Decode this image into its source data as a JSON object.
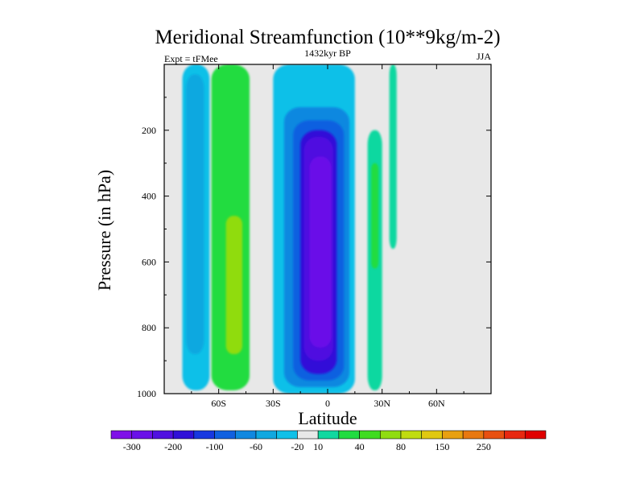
{
  "chart_data": {
    "type": "heatmap",
    "title": "Meridional Streamfunction (10**9kg/m-2)",
    "left_label": "Expt = tFMee",
    "center_label": "1432kyr BP",
    "right_label": "JJA",
    "xlabel": "Latitude",
    "ylabel": "Pressure (in hPa)",
    "xlim": [
      -90,
      90
    ],
    "ylim": [
      1000,
      0
    ],
    "x_ticks": [
      {
        "value": -60,
        "label": "60S"
      },
      {
        "value": -30,
        "label": "30S"
      },
      {
        "value": 0,
        "label": "0"
      },
      {
        "value": 30,
        "label": "30N"
      },
      {
        "value": 60,
        "label": "60N"
      }
    ],
    "y_ticks": [
      {
        "value": 200,
        "label": "200"
      },
      {
        "value": 400,
        "label": "400"
      },
      {
        "value": 600,
        "label": "600"
      },
      {
        "value": 800,
        "label": "800"
      },
      {
        "value": 1000,
        "label": "1000"
      }
    ],
    "colorbar": {
      "colors": [
        "#7f10e8",
        "#6a10e8",
        "#5010e0",
        "#3010d8",
        "#1838e0",
        "#1060e0",
        "#1088e0",
        "#10a8e0",
        "#10c0e8",
        "#e8e8e8",
        "#10d8a0",
        "#20dc40",
        "#40dc20",
        "#90dc10",
        "#c0dc10",
        "#e0c810",
        "#e8a010",
        "#e87810",
        "#e85010",
        "#e82810",
        "#e00000"
      ],
      "tick_labels": [
        "-300",
        "-200",
        "-100",
        "-60",
        "-20",
        "10",
        "40",
        "80",
        "150",
        "250"
      ],
      "tick_label_boundary_index": [
        1,
        3,
        5,
        7,
        9,
        10,
        12,
        14,
        16,
        18
      ]
    },
    "regions": [
      {
        "name": "sh-cell-outer",
        "lat": [
          -80,
          -65
        ],
        "p": [
          0,
          990
        ],
        "level": 8
      },
      {
        "name": "sh-cell-mid",
        "lat": [
          -78,
          -68
        ],
        "p": [
          30,
          880
        ],
        "level": 7
      },
      {
        "name": "ferrel-outer",
        "lat": [
          -64,
          -43
        ],
        "p": [
          0,
          990
        ],
        "level": 11
      },
      {
        "name": "ferrel-core",
        "lat": [
          -56,
          -47
        ],
        "p": [
          460,
          880
        ],
        "level": 13
      },
      {
        "name": "hadley-outer",
        "lat": [
          -30,
          15
        ],
        "p": [
          0,
          1000
        ],
        "level": 8
      },
      {
        "name": "hadley-1",
        "lat": [
          -24,
          12
        ],
        "p": [
          130,
          980
        ],
        "level": 6
      },
      {
        "name": "hadley-2",
        "lat": [
          -19,
          9
        ],
        "p": [
          170,
          960
        ],
        "level": 5
      },
      {
        "name": "hadley-3",
        "lat": [
          -15,
          5
        ],
        "p": [
          200,
          940
        ],
        "level": 3
      },
      {
        "name": "hadley-4",
        "lat": [
          -13,
          3
        ],
        "p": [
          220,
          900
        ],
        "level": 2
      },
      {
        "name": "hadley-core",
        "lat": [
          -10,
          2
        ],
        "p": [
          280,
          860
        ],
        "level": 1
      },
      {
        "name": "nh-cell",
        "lat": [
          22,
          30
        ],
        "p": [
          200,
          990
        ],
        "level": 10
      },
      {
        "name": "nh-cell-inner",
        "lat": [
          24,
          28
        ],
        "p": [
          300,
          620
        ],
        "level": 11
      },
      {
        "name": "nh-streak",
        "lat": [
          34,
          38
        ],
        "p": [
          0,
          560
        ],
        "level": 10
      }
    ]
  }
}
